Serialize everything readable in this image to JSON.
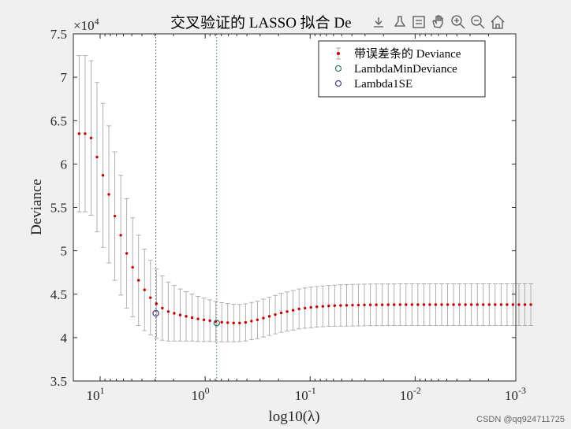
{
  "toolbar": {
    "icons": [
      "export-icon",
      "brush-icon",
      "datatip-icon",
      "pan-icon",
      "zoom-in-icon",
      "zoom-out-icon",
      "home-icon"
    ]
  },
  "watermark": "CSDN @qq924711725",
  "chart_data": {
    "type": "line",
    "title": "交叉验证的 LASSO 拟合 De",
    "xlabel": "log10(λ)",
    "ylabel": "Deviance",
    "y_exponent_label": "×10",
    "y_exponent": "4",
    "xscale": "log",
    "xaxis_reversed": true,
    "xlim": [
      18,
      0.0011
    ],
    "ylim": [
      3.5,
      7.5
    ],
    "y_multiplier": 10000,
    "yticks": [
      "3.5",
      "4",
      "4.5",
      "5",
      "5.5",
      "6",
      "6.5",
      "7",
      "7.5"
    ],
    "xticks": [
      {
        "base": "10",
        "exp": "1",
        "value": 10
      },
      {
        "base": "10",
        "exp": "0",
        "value": 1
      },
      {
        "base": "10",
        "exp": "-1",
        "value": 0.1
      },
      {
        "base": "10",
        "exp": "-2",
        "value": 0.01
      },
      {
        "base": "10",
        "exp": "-3",
        "value": 0.001
      }
    ],
    "grid": false,
    "legend_position": "top-right",
    "legend": [
      {
        "label": "带误差条的 Deviance",
        "marker": "errorbar-dot",
        "color": "#d00000"
      },
      {
        "label": "LambdaMinDeviance",
        "marker": "circle",
        "color": "#2e7d6e"
      },
      {
        "label": "Lambda1SE",
        "marker": "circle",
        "color": "#4a3f8a"
      }
    ],
    "series": [
      {
        "name": "带误差条的 Deviance",
        "log10_lambda_start": 1.2,
        "log10_lambda_step": -0.0566,
        "deviance": [
          6.35,
          6.35,
          6.3,
          6.08,
          5.87,
          5.65,
          5.4,
          5.18,
          4.97,
          4.81,
          4.66,
          4.55,
          4.46,
          4.39,
          4.34,
          4.3,
          4.28,
          4.26,
          4.245,
          4.23,
          4.215,
          4.205,
          4.195,
          4.185,
          4.177,
          4.172,
          4.168,
          4.168,
          4.175,
          4.19,
          4.205,
          4.225,
          4.245,
          4.265,
          4.285,
          4.3,
          4.315,
          4.33,
          4.34,
          4.348,
          4.355,
          4.36,
          4.365,
          4.368,
          4.37,
          4.372,
          4.374,
          4.375,
          4.376,
          4.377,
          4.378,
          4.378,
          4.379,
          4.379,
          4.38,
          4.38,
          4.38,
          4.38,
          4.38,
          4.38,
          4.38,
          4.38,
          4.38,
          4.38,
          4.38,
          4.38,
          4.38,
          4.38,
          4.38,
          4.38,
          4.38,
          4.38,
          4.38,
          4.38,
          4.38,
          4.38,
          4.38
        ],
        "error": [
          0.9,
          0.9,
          0.89,
          0.86,
          0.83,
          0.79,
          0.74,
          0.69,
          0.63,
          0.57,
          0.52,
          0.47,
          0.43,
          0.4,
          0.37,
          0.34,
          0.32,
          0.3,
          0.285,
          0.27,
          0.26,
          0.25,
          0.24,
          0.232,
          0.226,
          0.22,
          0.216,
          0.214,
          0.214,
          0.215,
          0.216,
          0.218,
          0.22,
          0.222,
          0.224,
          0.226,
          0.228,
          0.23,
          0.232,
          0.233,
          0.234,
          0.235,
          0.236,
          0.237,
          0.238,
          0.239,
          0.24,
          0.24,
          0.24,
          0.24,
          0.24,
          0.24,
          0.24,
          0.24,
          0.24,
          0.24,
          0.24,
          0.24,
          0.24,
          0.24,
          0.24,
          0.24,
          0.24,
          0.24,
          0.24,
          0.24,
          0.24,
          0.24,
          0.24,
          0.24,
          0.24,
          0.24,
          0.24,
          0.24,
          0.24,
          0.24,
          0.24
        ],
        "color": "#d00000",
        "errorbar_color": "#a8a8a8"
      }
    ],
    "reference_lines": [
      {
        "name": "Lambda1SE",
        "log10_lambda": 0.47,
        "deviance": 4.28,
        "color": "#4a3f8a"
      },
      {
        "name": "LambdaMinDeviance",
        "log10_lambda": -0.11,
        "deviance": 4.168,
        "color": "#2e7d6e"
      }
    ]
  }
}
